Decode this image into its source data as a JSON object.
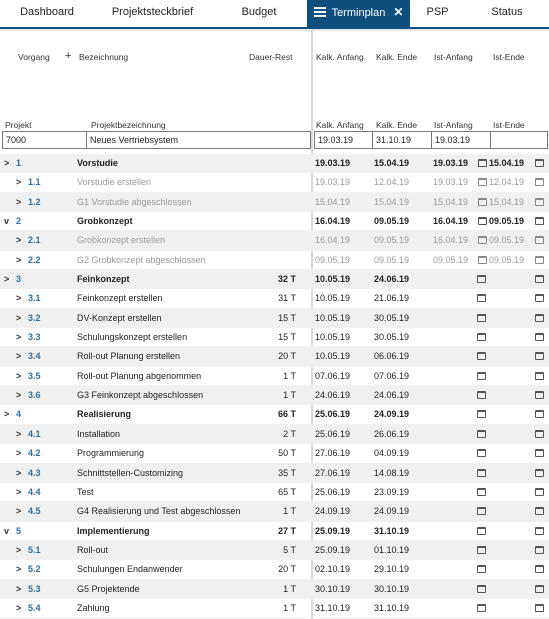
{
  "tabs": [
    {
      "label": "Dashboard"
    },
    {
      "label": "Projektsteckbrief"
    },
    {
      "label": "Budget"
    },
    {
      "label": "Terminplan",
      "active": true,
      "close": "✕"
    },
    {
      "label": "PSP"
    },
    {
      "label": "Status"
    }
  ],
  "columns": {
    "vorgang": "Vorgang",
    "plus": "+",
    "bezeichnung": "Bezeichnung",
    "dauer": "Dauer-Rest",
    "kalk_anfang": "Kalk. Anfang",
    "kalk_ende": "Kalk. Ende",
    "ist_anfang": "Ist-Anfang",
    "ist_ende": "Ist-Ende"
  },
  "project_header": {
    "projekt": "Projekt",
    "bezeichnung": "Projektbezeichnung",
    "kalk_anfang": "Kalk. Anfang",
    "kalk_ende": "Kalk. Ende",
    "ist_anfang": "Ist-Anfang",
    "ist_ende": "Ist-Ende"
  },
  "project": {
    "id": "7000",
    "name": "Neues Vertriebsystem",
    "kalk_anfang": "19.03.19",
    "kalk_ende": "31.10.19",
    "ist_anfang": "19.03.19",
    "ist_ende": ""
  },
  "rows": [
    {
      "level": 0,
      "chev": ">",
      "num": "1",
      "name": "Vorstudie",
      "dur": "",
      "ka": "19.03.19",
      "ke": "15.04.19",
      "ia": "19.03.19",
      "ie": "15.04.19",
      "style": "bold gray"
    },
    {
      "level": 1,
      "chev": ">",
      "num": "1.1",
      "name": "Vorstudie erstellen",
      "dur": "",
      "ka": "19.03.19",
      "ke": "12.04.19",
      "ia": "19.03.19",
      "ie": "12.04.19",
      "style": "muted"
    },
    {
      "level": 1,
      "chev": ">",
      "num": "1.2",
      "name": "G1 Vorstudie abgeschlossen",
      "dur": "",
      "ka": "15.04.19",
      "ke": "15.04.19",
      "ia": "15.04.19",
      "ie": "15.04.19",
      "style": "muted gray"
    },
    {
      "level": 0,
      "chev": "v",
      "num": "2",
      "name": "Grobkonzept",
      "dur": "",
      "ka": "16.04.19",
      "ke": "09.05.19",
      "ia": "16.04.19",
      "ie": "09.05.19",
      "style": "bold"
    },
    {
      "level": 1,
      "chev": ">",
      "num": "2.1",
      "name": "Grobkonzept erstellen",
      "dur": "",
      "ka": "16.04.19",
      "ke": "09.05.19",
      "ia": "16.04.19",
      "ie": "09.05.19",
      "style": "muted gray"
    },
    {
      "level": 1,
      "chev": ">",
      "num": "2.2",
      "name": "G2 Grobkonzept abgeschlossen",
      "dur": "",
      "ka": "09.05.19",
      "ke": "09.05.19",
      "ia": "09.05.19",
      "ie": "09.05.19",
      "style": "muted"
    },
    {
      "level": 0,
      "chev": ">",
      "num": "3",
      "name": "Feinkonzept",
      "dur": "32 T",
      "ka": "10.05.19",
      "ke": "24.06.19",
      "ia": "",
      "ie": "",
      "style": "bold gray"
    },
    {
      "level": 1,
      "chev": ">",
      "num": "3.1",
      "name": "Feinkonzept erstellen",
      "dur": "31 T",
      "ka": "10.05.19",
      "ke": "21.06.19",
      "ia": "",
      "ie": "",
      "style": ""
    },
    {
      "level": 1,
      "chev": ">",
      "num": "3.2",
      "name": "DV-Konzept erstellen",
      "dur": "15 T",
      "ka": "10.05.19",
      "ke": "30.05.19",
      "ia": "",
      "ie": "",
      "style": "gray"
    },
    {
      "level": 1,
      "chev": ">",
      "num": "3.3",
      "name": "Schulungskonzept erstellen",
      "dur": "15 T",
      "ka": "10.05.19",
      "ke": "30.05.19",
      "ia": "",
      "ie": "",
      "style": ""
    },
    {
      "level": 1,
      "chev": ">",
      "num": "3.4",
      "name": "Roll-out Planung erstellen",
      "dur": "20 T",
      "ka": "10.05.19",
      "ke": "06.06.19",
      "ia": "",
      "ie": "",
      "style": "gray"
    },
    {
      "level": 1,
      "chev": ">",
      "num": "3.5",
      "name": "Roll-out Planung abgenommen",
      "dur": "1 T",
      "ka": "07.06.19",
      "ke": "07.06.19",
      "ia": "",
      "ie": "",
      "style": ""
    },
    {
      "level": 1,
      "chev": ">",
      "num": "3.6",
      "name": "G3 Feinkonzept abgeschlossen",
      "dur": "1 T",
      "ka": "24.06.19",
      "ke": "24.06.19",
      "ia": "",
      "ie": "",
      "style": "gray"
    },
    {
      "level": 0,
      "chev": ">",
      "num": "4",
      "name": "Realisierung",
      "dur": "66 T",
      "ka": "25.06.19",
      "ke": "24.09.19",
      "ia": "",
      "ie": "",
      "style": "bold"
    },
    {
      "level": 1,
      "chev": ">",
      "num": "4.1",
      "name": "Installation",
      "dur": "2 T",
      "ka": "25.06.19",
      "ke": "26.06.19",
      "ia": "",
      "ie": "",
      "style": "gray"
    },
    {
      "level": 1,
      "chev": ">",
      "num": "4.2",
      "name": "Programmierung",
      "dur": "50 T",
      "ka": "27.06.19",
      "ke": "04.09.19",
      "ia": "",
      "ie": "",
      "style": ""
    },
    {
      "level": 1,
      "chev": ">",
      "num": "4.3",
      "name": "Schnittstellen-Customizing",
      "dur": "35 T",
      "ka": "27.06.19",
      "ke": "14.08.19",
      "ia": "",
      "ie": "",
      "style": "gray"
    },
    {
      "level": 1,
      "chev": ">",
      "num": "4.4",
      "name": "Test",
      "dur": "65 T",
      "ka": "25.06.19",
      "ke": "23.09.19",
      "ia": "",
      "ie": "",
      "style": ""
    },
    {
      "level": 1,
      "chev": ">",
      "num": "4.5",
      "name": "G4 Realisierung und Test abgeschlossen",
      "dur": "1 T",
      "ka": "24.09.19",
      "ke": "24.09.19",
      "ia": "",
      "ie": "",
      "style": "gray"
    },
    {
      "level": 0,
      "chev": "v",
      "num": "5",
      "name": "Implementierung",
      "dur": "27 T",
      "ka": "25.09.19",
      "ke": "31.10.19",
      "ia": "",
      "ie": "",
      "style": "bold"
    },
    {
      "level": 1,
      "chev": ">",
      "num": "5.1",
      "name": "Roll-out",
      "dur": "5 T",
      "ka": "25.09.19",
      "ke": "01.10.19",
      "ia": "",
      "ie": "",
      "style": "gray"
    },
    {
      "level": 1,
      "chev": ">",
      "num": "5.2",
      "name": "Schulungen Endanwender",
      "dur": "20 T",
      "ka": "02.10.19",
      "ke": "29.10.19",
      "ia": "",
      "ie": "",
      "style": ""
    },
    {
      "level": 1,
      "chev": ">",
      "num": "5.3",
      "name": "G5 Projektende",
      "dur": "1 T",
      "ka": "30.10.19",
      "ke": "30.10.19",
      "ia": "",
      "ie": "",
      "style": "gray"
    },
    {
      "level": 1,
      "chev": ">",
      "num": "5.4",
      "name": "Zahlung",
      "dur": "1 T",
      "ka": "31.10.19",
      "ke": "31.10.19",
      "ia": "",
      "ie": "",
      "style": ""
    }
  ]
}
